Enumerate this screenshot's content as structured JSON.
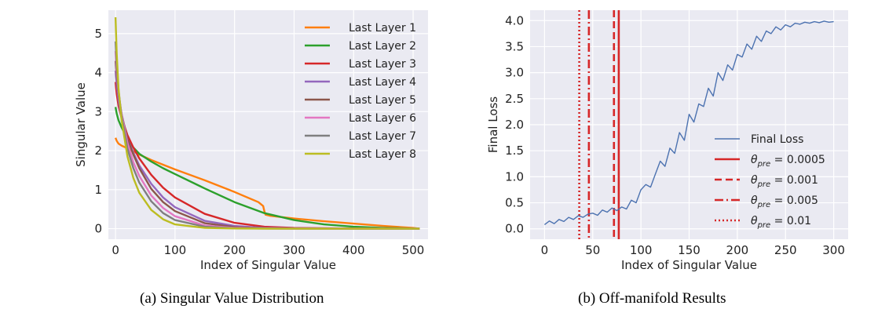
{
  "captions": {
    "a": "(a) Singular Value Distribution",
    "b": "(b) Off-manifold Results"
  },
  "chart_data": [
    {
      "type": "line",
      "title": "",
      "xlabel": "Index of Singular Value",
      "ylabel": "Singular Value",
      "xlim": [
        -12,
        525
      ],
      "ylim": [
        -0.27,
        5.6
      ],
      "xticks": [
        0,
        100,
        200,
        300,
        400,
        500
      ],
      "yticks": [
        0,
        1,
        2,
        3,
        4,
        5
      ],
      "grid": true,
      "background": "#eaeaf2",
      "legend": {
        "position": "top-right"
      },
      "series": [
        {
          "name": "Last Layer 1",
          "color": "#ff7f0e",
          "x": [
            0,
            2,
            5,
            10,
            20,
            40,
            60,
            80,
            100,
            150,
            200,
            240,
            248,
            250,
            252,
            260,
            300,
            350,
            400,
            450,
            500,
            511
          ],
          "y": [
            2.33,
            2.25,
            2.18,
            2.13,
            2.06,
            1.9,
            1.76,
            1.64,
            1.52,
            1.24,
            0.94,
            0.68,
            0.58,
            0.45,
            0.36,
            0.33,
            0.26,
            0.19,
            0.13,
            0.07,
            0.02,
            0.0
          ]
        },
        {
          "name": "Last Layer 2",
          "color": "#2ca02c",
          "x": [
            0,
            2,
            5,
            10,
            20,
            30,
            40,
            60,
            80,
            100,
            150,
            200,
            250,
            300,
            350,
            400,
            450,
            500,
            511
          ],
          "y": [
            3.12,
            2.95,
            2.78,
            2.6,
            2.3,
            2.08,
            1.92,
            1.72,
            1.55,
            1.4,
            1.03,
            0.68,
            0.4,
            0.22,
            0.11,
            0.05,
            0.02,
            0.005,
            0.0
          ]
        },
        {
          "name": "Last Layer 3",
          "color": "#d62728",
          "x": [
            0,
            2,
            5,
            10,
            20,
            30,
            40,
            60,
            80,
            100,
            150,
            200,
            250,
            300,
            400,
            511
          ],
          "y": [
            3.76,
            3.45,
            3.15,
            2.85,
            2.4,
            2.08,
            1.8,
            1.38,
            1.05,
            0.8,
            0.38,
            0.15,
            0.05,
            0.02,
            0.005,
            0.0
          ]
        },
        {
          "name": "Last Layer 4",
          "color": "#9467bd",
          "x": [
            0,
            2,
            5,
            10,
            20,
            30,
            40,
            60,
            80,
            100,
            150,
            200,
            250,
            300,
            400,
            511
          ],
          "y": [
            4.05,
            3.7,
            3.3,
            2.85,
            2.3,
            1.95,
            1.62,
            1.15,
            0.8,
            0.55,
            0.2,
            0.07,
            0.02,
            0.01,
            0.003,
            0.0
          ]
        },
        {
          "name": "Last Layer 5",
          "color": "#8c564b",
          "x": [
            0,
            2,
            5,
            10,
            20,
            30,
            40,
            60,
            80,
            100,
            150,
            200,
            250,
            300,
            400,
            511
          ],
          "y": [
            4.3,
            3.9,
            3.45,
            2.95,
            2.3,
            1.9,
            1.55,
            1.02,
            0.68,
            0.45,
            0.14,
            0.04,
            0.01,
            0.005,
            0.002,
            0.0
          ]
        },
        {
          "name": "Last Layer 6",
          "color": "#e377c2",
          "x": [
            0,
            2,
            5,
            10,
            20,
            30,
            40,
            60,
            80,
            100,
            150,
            200,
            250,
            300,
            400,
            511
          ],
          "y": [
            4.55,
            4.05,
            3.5,
            2.95,
            2.2,
            1.7,
            1.35,
            0.85,
            0.53,
            0.32,
            0.08,
            0.02,
            0.005,
            0.002,
            0.001,
            0.0
          ]
        },
        {
          "name": "Last Layer 7",
          "color": "#7f7f7f",
          "x": [
            0,
            2,
            5,
            10,
            20,
            30,
            40,
            60,
            80,
            100,
            150,
            200,
            250,
            300,
            400,
            511
          ],
          "y": [
            4.8,
            4.2,
            3.55,
            2.9,
            2.05,
            1.55,
            1.18,
            0.7,
            0.4,
            0.22,
            0.05,
            0.01,
            0.003,
            0.001,
            0.0,
            0.0
          ]
        },
        {
          "name": "Last Layer 8",
          "color": "#bcbd22",
          "x": [
            0,
            2,
            5,
            10,
            20,
            30,
            40,
            60,
            80,
            100,
            150,
            200,
            250,
            300,
            400,
            511
          ],
          "y": [
            5.42,
            4.5,
            3.6,
            2.8,
            1.85,
            1.3,
            0.92,
            0.48,
            0.24,
            0.11,
            0.02,
            0.005,
            0.001,
            0.0,
            0.0,
            0.0
          ]
        }
      ]
    },
    {
      "type": "line",
      "title": "",
      "xlabel": "Index of Singular Value",
      "ylabel": "Final Loss",
      "xlim": [
        -15,
        315
      ],
      "ylim": [
        -0.2,
        4.2
      ],
      "xticks": [
        0,
        50,
        100,
        150,
        200,
        250,
        300
      ],
      "yticks": [
        0.0,
        0.5,
        1.0,
        1.5,
        2.0,
        2.5,
        3.0,
        3.5,
        4.0
      ],
      "ytick_labels": [
        "0.0",
        "0.5",
        "1.0",
        "1.5",
        "2.0",
        "2.5",
        "3.0",
        "3.5",
        "4.0"
      ],
      "grid": true,
      "background": "#eaeaf2",
      "legend": {
        "position": "center-right"
      },
      "series": [
        {
          "name": "Final Loss",
          "color": "#4c72b0",
          "x": [
            0,
            5,
            10,
            15,
            20,
            25,
            30,
            35,
            40,
            45,
            50,
            55,
            60,
            65,
            70,
            75,
            80,
            85,
            90,
            95,
            100,
            105,
            110,
            115,
            120,
            125,
            130,
            135,
            140,
            145,
            150,
            155,
            160,
            165,
            170,
            175,
            180,
            185,
            190,
            195,
            200,
            205,
            210,
            215,
            220,
            225,
            230,
            235,
            240,
            245,
            250,
            255,
            260,
            265,
            270,
            275,
            280,
            285,
            290,
            295,
            300
          ],
          "y": [
            0.08,
            0.15,
            0.1,
            0.18,
            0.14,
            0.22,
            0.18,
            0.25,
            0.22,
            0.28,
            0.3,
            0.26,
            0.36,
            0.32,
            0.4,
            0.35,
            0.42,
            0.38,
            0.55,
            0.5,
            0.75,
            0.85,
            0.8,
            1.05,
            1.3,
            1.2,
            1.55,
            1.45,
            1.85,
            1.7,
            2.2,
            2.05,
            2.4,
            2.35,
            2.7,
            2.55,
            3.0,
            2.85,
            3.15,
            3.05,
            3.35,
            3.3,
            3.55,
            3.45,
            3.7,
            3.6,
            3.8,
            3.75,
            3.88,
            3.82,
            3.92,
            3.88,
            3.95,
            3.93,
            3.97,
            3.95,
            3.98,
            3.96,
            3.99,
            3.97,
            3.98
          ]
        }
      ],
      "vlines": [
        {
          "name": "θpre = 0.0005",
          "label_sym": "θ",
          "label_sub": "pre",
          "label_val": " = 0.0005",
          "x": 77,
          "style": "solid",
          "color": "#d62728"
        },
        {
          "name": "θpre = 0.001",
          "label_sym": "θ",
          "label_sub": "pre",
          "label_val": " = 0.001",
          "x": 72,
          "style": "dashed",
          "color": "#d62728"
        },
        {
          "name": "θpre = 0.005",
          "label_sym": "θ",
          "label_sub": "pre",
          "label_val": " = 0.005",
          "x": 46,
          "style": "dashdot",
          "color": "#d62728"
        },
        {
          "name": "θpre = 0.01",
          "label_sym": "θ",
          "label_sub": "pre",
          "label_val": " = 0.01",
          "x": 36,
          "style": "dotted",
          "color": "#d62728"
        }
      ]
    }
  ]
}
